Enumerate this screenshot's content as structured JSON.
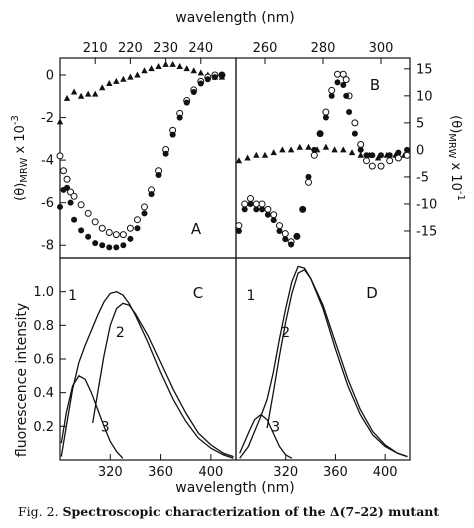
{
  "figure": {
    "caption_label": "Fig. 2.",
    "caption_text": "Spectroscopic characterization of the Δ(7–22) mutant"
  },
  "chart_data": [
    {
      "panel": "A",
      "type": "scatter",
      "xlabel": "wavelength (nm)",
      "ylabel": "(θ)MRW x 10-3",
      "xlim": [
        200,
        250
      ],
      "ylim": [
        -8.6,
        0.8
      ],
      "xticks": [
        210,
        220,
        230,
        240
      ],
      "yticks": [
        0,
        -2,
        -4,
        -6,
        -8
      ],
      "series": [
        {
          "marker": "triangle",
          "x": [
            200,
            202,
            204,
            206,
            208,
            210,
            212,
            214,
            216,
            218,
            220,
            222,
            224,
            226,
            228,
            230,
            232,
            234,
            236,
            238,
            240,
            242,
            244,
            246
          ],
          "y": [
            -2.2,
            -1.1,
            -0.8,
            -1.0,
            -0.9,
            -0.9,
            -0.6,
            -0.4,
            -0.3,
            -0.2,
            -0.1,
            0.0,
            0.2,
            0.3,
            0.4,
            0.5,
            0.5,
            0.4,
            0.3,
            0.2,
            0.1,
            0.0,
            -0.1,
            -0.1
          ]
        },
        {
          "marker": "open-circle",
          "x": [
            200,
            201,
            202,
            203,
            204,
            206,
            208,
            210,
            212,
            214,
            216,
            218,
            220,
            222,
            224,
            226,
            228,
            230,
            232,
            234,
            236,
            238,
            240,
            242,
            244,
            246
          ],
          "y": [
            -3.8,
            -4.5,
            -4.9,
            -5.5,
            -5.7,
            -6.1,
            -6.5,
            -6.9,
            -7.2,
            -7.4,
            -7.5,
            -7.5,
            -7.2,
            -6.8,
            -6.2,
            -5.4,
            -4.5,
            -3.5,
            -2.6,
            -1.8,
            -1.2,
            -0.7,
            -0.3,
            -0.1,
            0.0,
            0.0
          ]
        },
        {
          "marker": "filled-circle",
          "x": [
            200,
            201,
            202,
            203,
            204,
            206,
            208,
            210,
            212,
            214,
            216,
            218,
            220,
            222,
            224,
            226,
            228,
            230,
            232,
            234,
            236,
            238,
            240,
            242,
            244,
            246
          ],
          "y": [
            -6.2,
            -5.4,
            -5.3,
            -6.0,
            -6.8,
            -7.3,
            -7.6,
            -7.9,
            -8.0,
            -8.1,
            -8.1,
            -8.0,
            -7.7,
            -7.2,
            -6.5,
            -5.6,
            -4.7,
            -3.7,
            -2.8,
            -2.0,
            -1.3,
            -0.8,
            -0.4,
            -0.2,
            -0.1,
            0.0
          ]
        }
      ]
    },
    {
      "panel": "B",
      "type": "scatter",
      "xlabel": "wavelength (nm)",
      "ylabel": "(θ)MRW x 10-1",
      "xlim": [
        250,
        310
      ],
      "ylim": [
        -20,
        17
      ],
      "xticks": [
        260,
        280,
        300
      ],
      "yticks": [
        15,
        10,
        5,
        0,
        -5,
        -10,
        -15
      ],
      "series": [
        {
          "marker": "triangle",
          "x": [
            251,
            254,
            257,
            260,
            263,
            266,
            269,
            272,
            275,
            278,
            281,
            284,
            287,
            290,
            293,
            296,
            299,
            302,
            305,
            308
          ],
          "y": [
            -2,
            -1.5,
            -1,
            -1,
            -0.5,
            0,
            0,
            0.5,
            0.5,
            0,
            0.5,
            0,
            0,
            -0.5,
            -1,
            -1,
            -1.5,
            -1,
            -1,
            -1
          ]
        },
        {
          "marker": "open-circle",
          "x": [
            251,
            253,
            255,
            257,
            259,
            261,
            263,
            265,
            267,
            269,
            271,
            273,
            275,
            277,
            279,
            281,
            283,
            285,
            287,
            288,
            289,
            291,
            293,
            295,
            297,
            300,
            303,
            306,
            309
          ],
          "y": [
            -14,
            -10,
            -9,
            -10,
            -10,
            -11,
            -12,
            -14,
            -15.5,
            -17,
            -16,
            -11,
            -6,
            -1,
            3,
            7,
            11,
            14,
            14,
            13,
            10,
            5,
            1,
            -2,
            -3,
            -3,
            -2,
            -1.5,
            -1
          ]
        },
        {
          "marker": "filled-circle",
          "x": [
            251,
            253,
            255,
            257,
            259,
            261,
            263,
            265,
            267,
            269,
            271,
            273,
            275,
            277,
            279,
            281,
            283,
            285,
            287,
            288,
            289,
            291,
            293,
            295,
            297,
            300,
            303,
            306,
            309
          ],
          "y": [
            -15,
            -11,
            -10,
            -11,
            -11,
            -12,
            -13,
            -15,
            -16.5,
            -17.5,
            -16,
            -11,
            -5,
            0,
            3,
            6,
            10,
            12.5,
            12,
            10,
            7,
            3,
            0,
            -1,
            -1,
            -1,
            -1,
            -0.5,
            0
          ]
        }
      ]
    },
    {
      "panel": "C",
      "type": "line",
      "xlabel": "wavelength (nm)",
      "ylabel": "fluorescence intensity",
      "xlim": [
        280,
        420
      ],
      "ylim": [
        0,
        1.2
      ],
      "xticks": [
        320,
        360,
        400
      ],
      "yticks": [
        0.2,
        0.4,
        0.6,
        0.8,
        1.0
      ],
      "series": [
        {
          "name": "1",
          "x": [
            281,
            285,
            290,
            295,
            300,
            305,
            310,
            315,
            320,
            325,
            330,
            335,
            340,
            350,
            360,
            370,
            380,
            390,
            400,
            410,
            418
          ],
          "y": [
            0.02,
            0.2,
            0.42,
            0.58,
            0.68,
            0.77,
            0.86,
            0.94,
            0.99,
            1.0,
            0.98,
            0.93,
            0.86,
            0.7,
            0.52,
            0.36,
            0.23,
            0.13,
            0.07,
            0.03,
            0.01
          ]
        },
        {
          "name": "2",
          "x": [
            306,
            310,
            315,
            320,
            325,
            330,
            335,
            340,
            350,
            360,
            370,
            380,
            390,
            400,
            410,
            418
          ],
          "y": [
            0.22,
            0.4,
            0.62,
            0.8,
            0.9,
            0.93,
            0.92,
            0.87,
            0.74,
            0.58,
            0.42,
            0.28,
            0.16,
            0.09,
            0.04,
            0.02
          ]
        },
        {
          "name": "3",
          "x": [
            281,
            285,
            290,
            295,
            300,
            305,
            310,
            315,
            320,
            325,
            330
          ],
          "y": [
            0.1,
            0.28,
            0.44,
            0.5,
            0.48,
            0.4,
            0.3,
            0.2,
            0.11,
            0.05,
            0.01
          ]
        }
      ]
    },
    {
      "panel": "D",
      "type": "line",
      "xlabel": "wavelength (nm)",
      "ylabel": "",
      "xlim": [
        280,
        420
      ],
      "ylim": [
        0,
        1.2
      ],
      "xticks": [
        320,
        360,
        400
      ],
      "yticks": [],
      "series": [
        {
          "name": "1",
          "x": [
            283,
            290,
            295,
            300,
            305,
            310,
            315,
            320,
            325,
            330,
            335,
            340,
            350,
            360,
            370,
            380,
            390,
            400,
            410,
            418
          ],
          "y": [
            0.01,
            0.08,
            0.17,
            0.26,
            0.36,
            0.52,
            0.72,
            0.9,
            1.06,
            1.15,
            1.14,
            1.08,
            0.9,
            0.66,
            0.44,
            0.27,
            0.15,
            0.08,
            0.04,
            0.02
          ]
        },
        {
          "name": "2",
          "x": [
            305,
            310,
            315,
            320,
            325,
            330,
            335,
            340,
            350,
            360,
            370,
            380,
            390,
            400,
            410,
            418
          ],
          "y": [
            0.19,
            0.4,
            0.62,
            0.82,
            0.99,
            1.11,
            1.13,
            1.08,
            0.92,
            0.7,
            0.48,
            0.3,
            0.17,
            0.09,
            0.04,
            0.02
          ]
        },
        {
          "name": "3",
          "x": [
            283,
            290,
            295,
            300,
            305,
            310,
            315,
            320,
            325
          ],
          "y": [
            0.04,
            0.16,
            0.24,
            0.27,
            0.24,
            0.16,
            0.08,
            0.03,
            0.01
          ]
        }
      ]
    }
  ]
}
